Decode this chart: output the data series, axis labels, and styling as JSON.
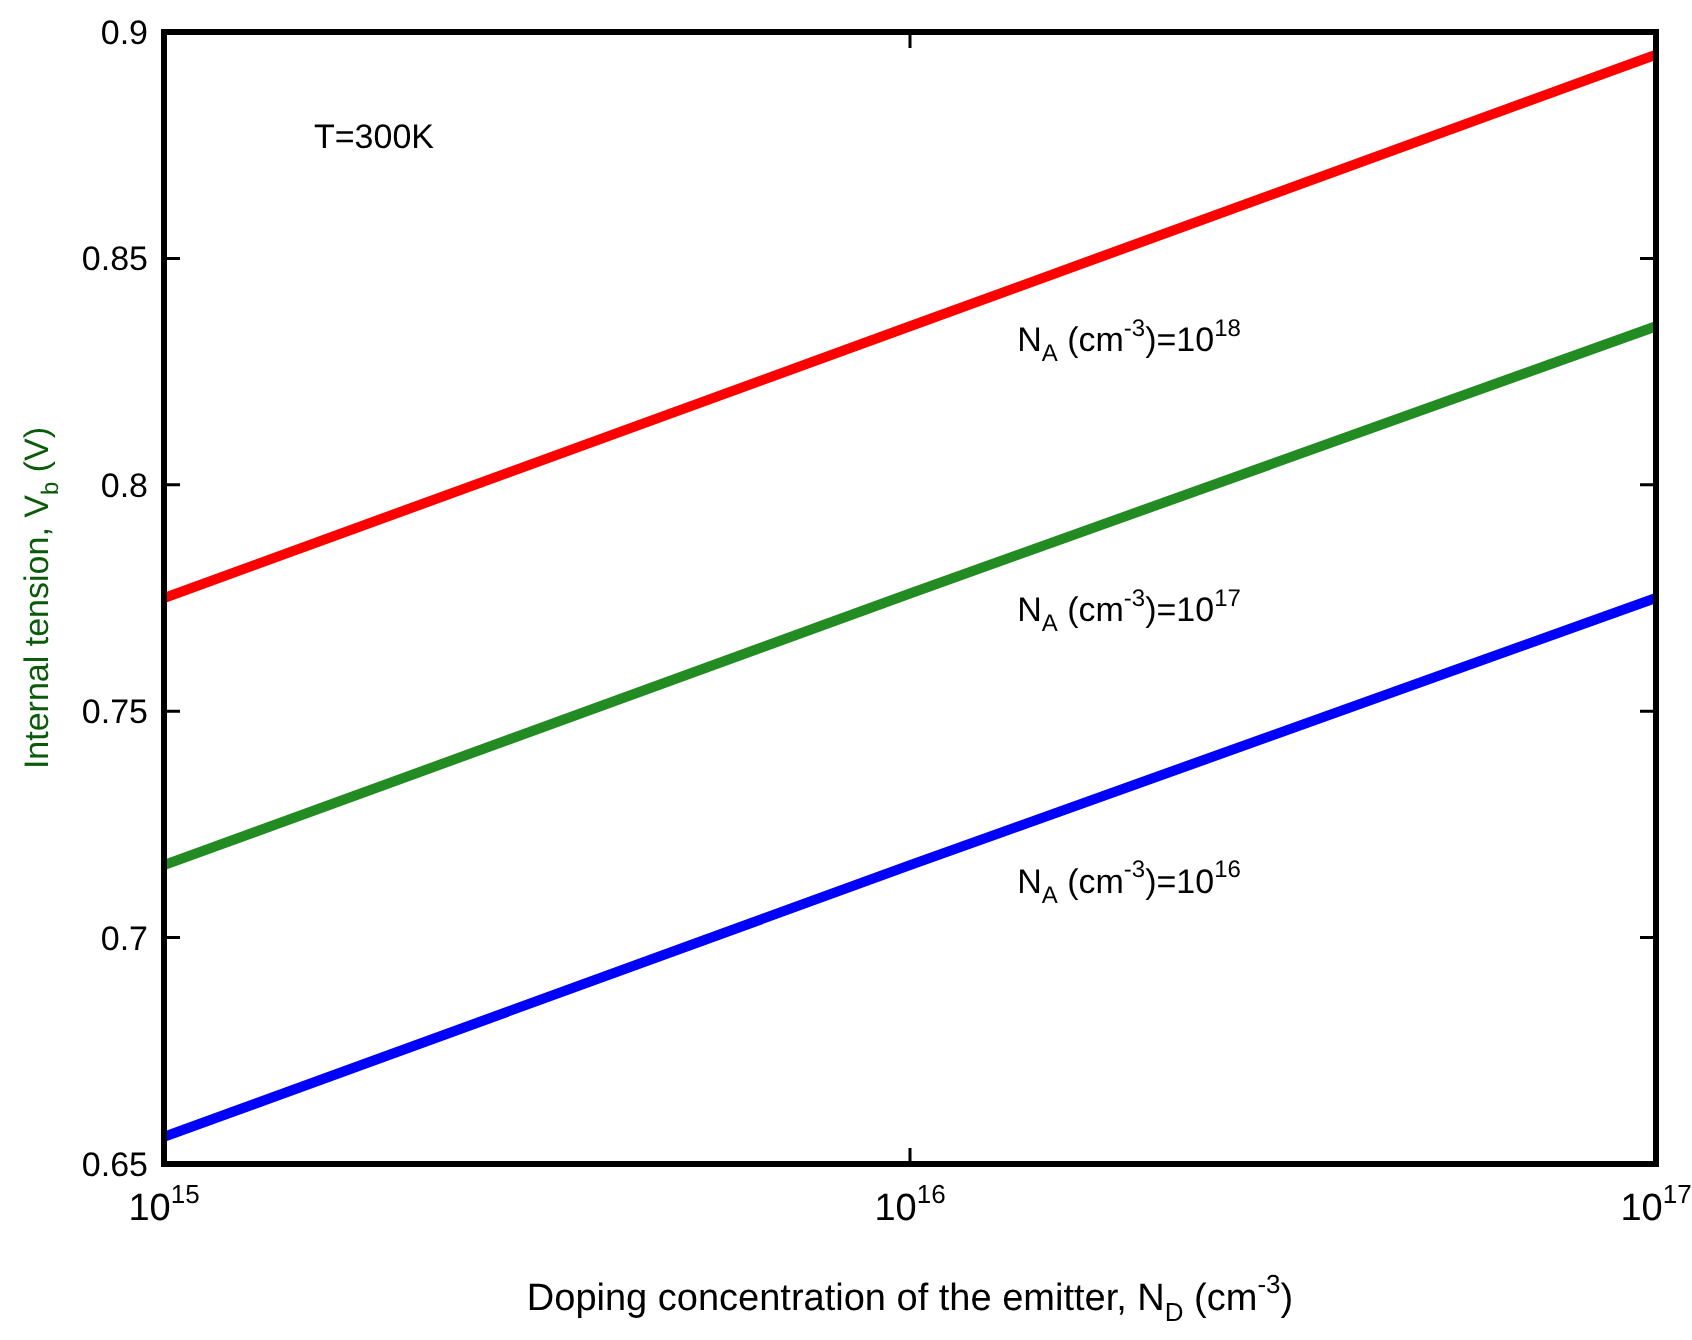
{
  "chart_data": {
    "type": "line",
    "xlabel": "Doping concentration of the emitter, N$_{D}$ (cm$^{-3}$)",
    "ylabel": "Internal tension, V$_{b}$ (V)",
    "log": "x",
    "xlim": [
      1000000000000000.0,
      1e+17
    ],
    "xticks": [
      {
        "value": 1000000000000000.0,
        "label": "10$^{15}$"
      },
      {
        "value": 1e+16,
        "label": "10$^{16}$"
      },
      {
        "value": 1e+17,
        "label": "10$^{17}$"
      }
    ],
    "ylim": [
      0.65,
      0.9
    ],
    "yticks": [
      0.65,
      0.7,
      0.75,
      0.8,
      0.85,
      0.9
    ],
    "grid": false,
    "legend": false,
    "marker": "none",
    "line_style": "solid",
    "annotations": [
      "T=300K"
    ],
    "x": [
      1000000000000000.0,
      1e+16,
      1e+17
    ],
    "series": [
      {
        "name": "N$_{A}$ (cm$^{-3}$)=10$^{18}$",
        "color": "#ff0000",
        "values": [
          0.775,
          0.835,
          0.895
        ]
      },
      {
        "name": "N$_{A}$ (cm$^{-3}$)=10$^{17}$",
        "color": "#228b22",
        "values": [
          0.716,
          0.776,
          0.835
        ]
      },
      {
        "name": "N$_{A}$ (cm$^{-3}$)=10$^{16}$",
        "color": "#0000ff",
        "values": [
          0.656,
          0.716,
          0.775
        ]
      }
    ]
  }
}
